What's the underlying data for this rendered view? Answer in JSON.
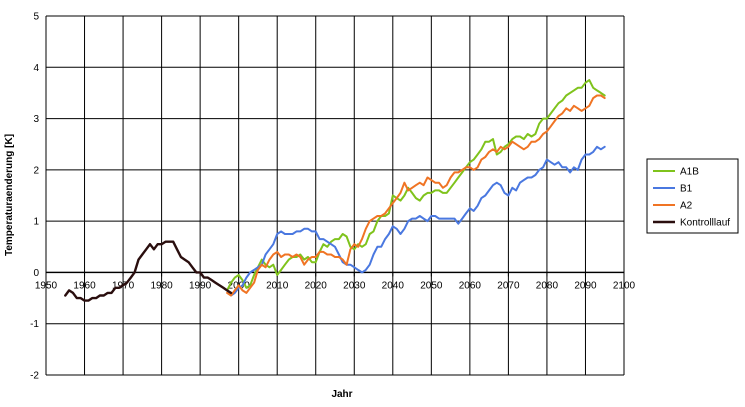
{
  "chart_data": {
    "type": "line",
    "title": "",
    "xlabel": "Jahr",
    "ylabel": "Temperaturaenderung [K]",
    "xlim": [
      1950,
      2100
    ],
    "ylim": [
      -2,
      5
    ],
    "x_ticks": [
      1950,
      1960,
      1970,
      1980,
      1990,
      2000,
      2010,
      2020,
      2030,
      2040,
      2050,
      2060,
      2070,
      2080,
      2090,
      2100
    ],
    "y_ticks": [
      -2,
      -1,
      0,
      1,
      2,
      3,
      4,
      5
    ],
    "grid": true,
    "legend_position": "right",
    "series": [
      {
        "name": "A1B",
        "color": "#7fc31c",
        "x": [
          1997,
          1998,
          1999,
          2000,
          2001,
          2002,
          2003,
          2004,
          2005,
          2006,
          2007,
          2008,
          2009,
          2010,
          2011,
          2012,
          2013,
          2014,
          2015,
          2016,
          2017,
          2018,
          2019,
          2020,
          2021,
          2022,
          2023,
          2024,
          2025,
          2026,
          2027,
          2028,
          2029,
          2030,
          2031,
          2032,
          2033,
          2034,
          2035,
          2036,
          2037,
          2038,
          2039,
          2040,
          2041,
          2042,
          2043,
          2044,
          2045,
          2046,
          2047,
          2048,
          2049,
          2050,
          2051,
          2052,
          2053,
          2054,
          2055,
          2056,
          2057,
          2058,
          2059,
          2060,
          2061,
          2062,
          2063,
          2064,
          2065,
          2066,
          2067,
          2068,
          2069,
          2070,
          2071,
          2072,
          2073,
          2074,
          2075,
          2076,
          2077,
          2078,
          2079,
          2080,
          2081,
          2082,
          2083,
          2084,
          2085,
          2086,
          2087,
          2088,
          2089,
          2090,
          2091,
          2092,
          2093,
          2094,
          2095
        ],
        "values": [
          -0.35,
          -0.2,
          -0.1,
          -0.05,
          -0.15,
          -0.3,
          -0.25,
          -0.05,
          0.1,
          0.25,
          0.15,
          0.1,
          0.15,
          -0.05,
          0.05,
          0.15,
          0.25,
          0.3,
          0.3,
          0.35,
          0.25,
          0.3,
          0.2,
          0.2,
          0.4,
          0.55,
          0.5,
          0.6,
          0.65,
          0.65,
          0.75,
          0.7,
          0.5,
          0.45,
          0.55,
          0.5,
          0.55,
          0.75,
          0.8,
          1.0,
          1.1,
          1.1,
          1.15,
          1.5,
          1.45,
          1.4,
          1.5,
          1.65,
          1.55,
          1.45,
          1.4,
          1.5,
          1.55,
          1.55,
          1.6,
          1.6,
          1.55,
          1.55,
          1.65,
          1.75,
          1.85,
          1.95,
          2.05,
          2.15,
          2.2,
          2.3,
          2.4,
          2.55,
          2.55,
          2.6,
          2.3,
          2.35,
          2.45,
          2.5,
          2.6,
          2.65,
          2.65,
          2.6,
          2.7,
          2.65,
          2.7,
          2.9,
          3.0,
          3.0,
          3.1,
          3.2,
          3.3,
          3.35,
          3.45,
          3.5,
          3.55,
          3.6,
          3.6,
          3.7,
          3.75,
          3.6,
          3.55,
          3.5,
          3.45
        ],
        "color_note": ""
      },
      {
        "name": "B1",
        "color": "#4a78e0",
        "x": [
          1997,
          1998,
          1999,
          2000,
          2001,
          2002,
          2003,
          2004,
          2005,
          2006,
          2007,
          2008,
          2009,
          2010,
          2011,
          2012,
          2013,
          2014,
          2015,
          2016,
          2017,
          2018,
          2019,
          2020,
          2021,
          2022,
          2023,
          2024,
          2025,
          2026,
          2027,
          2028,
          2029,
          2030,
          2031,
          2032,
          2033,
          2034,
          2035,
          2036,
          2037,
          2038,
          2039,
          2040,
          2041,
          2042,
          2043,
          2044,
          2045,
          2046,
          2047,
          2048,
          2049,
          2050,
          2051,
          2052,
          2053,
          2054,
          2055,
          2056,
          2057,
          2058,
          2059,
          2060,
          2061,
          2062,
          2063,
          2064,
          2065,
          2066,
          2067,
          2068,
          2069,
          2070,
          2071,
          2072,
          2073,
          2074,
          2075,
          2076,
          2077,
          2078,
          2079,
          2080,
          2081,
          2082,
          2083,
          2084,
          2085,
          2086,
          2087,
          2088,
          2089,
          2090,
          2091,
          2092,
          2093,
          2094,
          2095
        ],
        "values": [
          -0.35,
          -0.45,
          -0.4,
          -0.3,
          -0.25,
          -0.1,
          0.0,
          0.05,
          0.1,
          0.15,
          0.35,
          0.45,
          0.55,
          0.75,
          0.8,
          0.75,
          0.75,
          0.75,
          0.8,
          0.8,
          0.85,
          0.85,
          0.8,
          0.8,
          0.65,
          0.65,
          0.6,
          0.55,
          0.5,
          0.35,
          0.2,
          0.15,
          0.15,
          0.1,
          0.05,
          0.0,
          0.05,
          0.15,
          0.35,
          0.5,
          0.5,
          0.65,
          0.75,
          0.9,
          0.85,
          0.75,
          0.85,
          1.0,
          1.05,
          1.05,
          1.1,
          1.05,
          1.0,
          1.1,
          1.1,
          1.05,
          1.05,
          1.05,
          1.05,
          1.05,
          0.95,
          1.05,
          1.15,
          1.25,
          1.2,
          1.3,
          1.45,
          1.5,
          1.6,
          1.7,
          1.75,
          1.7,
          1.55,
          1.5,
          1.65,
          1.6,
          1.75,
          1.8,
          1.85,
          1.85,
          1.9,
          2.0,
          2.05,
          2.2,
          2.15,
          2.1,
          2.15,
          2.05,
          2.05,
          1.95,
          2.05,
          2.0,
          2.2,
          2.3,
          2.3,
          2.35,
          2.45,
          2.4,
          2.45
        ],
        "color_note": ""
      },
      {
        "name": "A2",
        "color": "#f07424",
        "x": [
          1997,
          1998,
          1999,
          2000,
          2001,
          2002,
          2003,
          2004,
          2005,
          2006,
          2007,
          2008,
          2009,
          2010,
          2011,
          2012,
          2013,
          2014,
          2015,
          2016,
          2017,
          2018,
          2019,
          2020,
          2021,
          2022,
          2023,
          2024,
          2025,
          2026,
          2027,
          2028,
          2029,
          2030,
          2031,
          2032,
          2033,
          2034,
          2035,
          2036,
          2037,
          2038,
          2039,
          2040,
          2041,
          2042,
          2043,
          2044,
          2045,
          2046,
          2047,
          2048,
          2049,
          2050,
          2051,
          2052,
          2053,
          2054,
          2055,
          2056,
          2057,
          2058,
          2059,
          2060,
          2061,
          2062,
          2063,
          2064,
          2065,
          2066,
          2067,
          2068,
          2069,
          2070,
          2071,
          2072,
          2073,
          2074,
          2075,
          2076,
          2077,
          2078,
          2079,
          2080,
          2081,
          2082,
          2083,
          2084,
          2085,
          2086,
          2087,
          2088,
          2089,
          2090,
          2091,
          2092,
          2093,
          2094,
          2095
        ],
        "values": [
          -0.4,
          -0.45,
          -0.35,
          -0.25,
          -0.35,
          -0.4,
          -0.3,
          -0.2,
          0.05,
          0.15,
          0.1,
          0.25,
          0.35,
          0.4,
          0.3,
          0.35,
          0.35,
          0.3,
          0.35,
          0.3,
          0.15,
          0.25,
          0.3,
          0.3,
          0.4,
          0.4,
          0.35,
          0.35,
          0.3,
          0.3,
          0.25,
          0.15,
          0.45,
          0.55,
          0.5,
          0.65,
          0.85,
          1.0,
          1.05,
          1.1,
          1.1,
          1.15,
          1.25,
          1.35,
          1.45,
          1.55,
          1.75,
          1.6,
          1.65,
          1.7,
          1.75,
          1.7,
          1.85,
          1.8,
          1.75,
          1.75,
          1.65,
          1.7,
          1.85,
          1.95,
          1.95,
          2.0,
          2.05,
          2.05,
          2.0,
          2.05,
          2.2,
          2.25,
          2.35,
          2.4,
          2.35,
          2.45,
          2.4,
          2.45,
          2.55,
          2.5,
          2.45,
          2.4,
          2.45,
          2.55,
          2.55,
          2.6,
          2.7,
          2.75,
          2.85,
          2.95,
          3.05,
          3.1,
          3.2,
          3.15,
          3.25,
          3.2,
          3.15,
          3.2,
          3.25,
          3.4,
          3.45,
          3.45,
          3.4
        ],
        "color_note": ""
      },
      {
        "name": "Kontrolllauf",
        "color": "#2a0e0e",
        "x": [
          1955,
          1956,
          1957,
          1958,
          1959,
          1960,
          1961,
          1962,
          1963,
          1964,
          1965,
          1966,
          1967,
          1968,
          1969,
          1970,
          1971,
          1972,
          1973,
          1974,
          1975,
          1976,
          1977,
          1978,
          1979,
          1980,
          1981,
          1982,
          1983,
          1984,
          1985,
          1986,
          1987,
          1988,
          1989,
          1990,
          1991,
          1992,
          1993,
          1994,
          1995,
          1996,
          1997,
          1998
        ],
        "values": [
          -0.45,
          -0.35,
          -0.4,
          -0.5,
          -0.5,
          -0.55,
          -0.55,
          -0.5,
          -0.5,
          -0.45,
          -0.45,
          -0.4,
          -0.4,
          -0.3,
          -0.3,
          -0.25,
          -0.2,
          -0.1,
          0.0,
          0.25,
          0.35,
          0.45,
          0.55,
          0.45,
          0.55,
          0.55,
          0.6,
          0.6,
          0.6,
          0.45,
          0.3,
          0.25,
          0.2,
          0.1,
          0.0,
          0.0,
          -0.1,
          -0.1,
          -0.15,
          -0.2,
          -0.25,
          -0.3,
          -0.35,
          -0.4
        ],
        "color_note": ""
      }
    ]
  }
}
